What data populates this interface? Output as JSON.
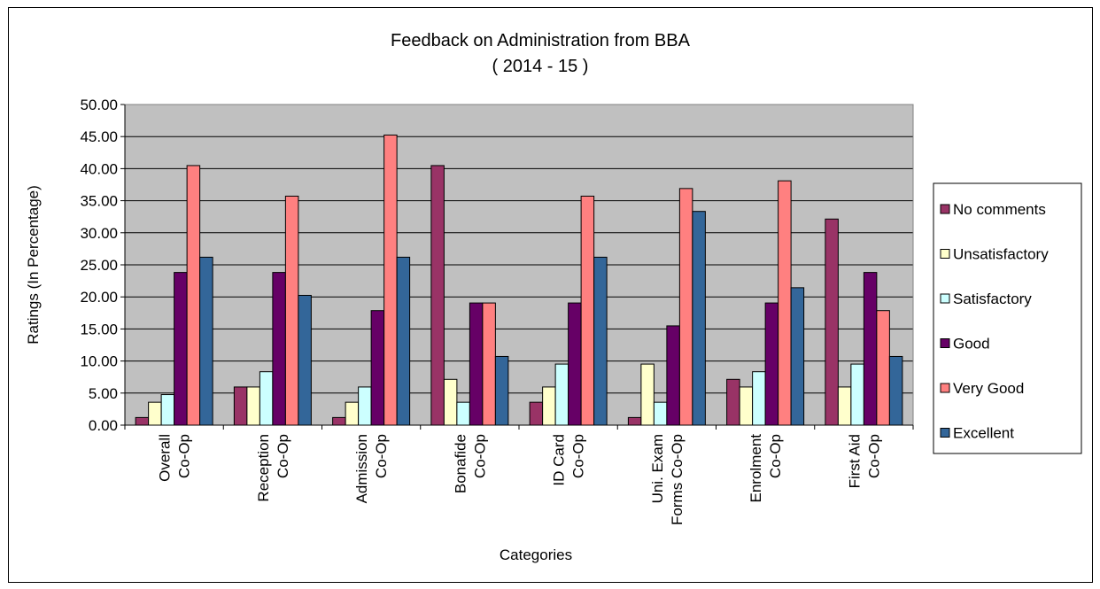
{
  "chart_data": {
    "type": "bar",
    "title": "Feedback on Administration from BBA",
    "subtitle": "( 2014 - 15 )",
    "xlabel": "Categories",
    "ylabel": "Ratings (In Percentage)",
    "ylim": [
      0,
      50
    ],
    "ytick_step": 5,
    "ytick_labels": [
      "0.00",
      "5.00",
      "10.00",
      "15.00",
      "20.00",
      "25.00",
      "30.00",
      "35.00",
      "40.00",
      "45.00",
      "50.00"
    ],
    "grid": true,
    "legend_position": "right",
    "plot_background": "#c0c0c0",
    "categories": [
      [
        "Overall",
        "Co-Op"
      ],
      [
        "Reception",
        "Co-Op"
      ],
      [
        "Admission",
        "Co-Op"
      ],
      [
        "Bonafide",
        "Co-Op"
      ],
      [
        "ID Card",
        "Co-Op"
      ],
      [
        "Uni. Exam",
        "Forms Co-Op"
      ],
      [
        "Enrolment",
        "Co-Op"
      ],
      [
        "First Aid",
        "Co-Op"
      ]
    ],
    "series": [
      {
        "name": "No comments",
        "color": "#993366",
        "values": [
          1.19,
          5.95,
          1.19,
          40.48,
          3.57,
          1.19,
          7.14,
          32.14
        ]
      },
      {
        "name": "Unsatisfactory",
        "color": "#ffffcc",
        "values": [
          3.57,
          5.95,
          3.57,
          7.14,
          5.95,
          9.52,
          5.95,
          5.95
        ]
      },
      {
        "name": "Satisfactory",
        "color": "#ccffff",
        "values": [
          4.76,
          8.33,
          5.95,
          3.57,
          9.52,
          3.57,
          8.33,
          9.52
        ]
      },
      {
        "name": "Good",
        "color": "#660066",
        "values": [
          23.81,
          23.81,
          17.86,
          19.05,
          19.05,
          15.48,
          19.05,
          23.81
        ]
      },
      {
        "name": "Very Good",
        "color": "#ff8080",
        "values": [
          40.48,
          35.71,
          45.24,
          19.05,
          35.71,
          36.9,
          38.1,
          17.86
        ]
      },
      {
        "name": "Excellent",
        "color": "#336699",
        "values": [
          26.19,
          20.24,
          26.19,
          10.71,
          26.19,
          33.33,
          21.43,
          10.71
        ]
      }
    ]
  }
}
